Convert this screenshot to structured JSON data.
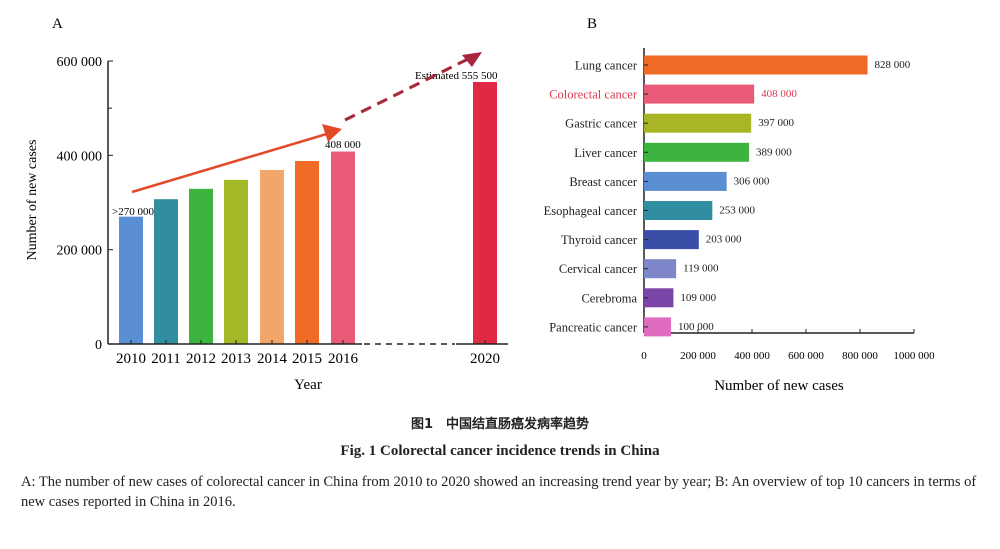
{
  "chart_data": [
    {
      "type": "bar",
      "panel_label": "A",
      "ylabel": "Number of new cases",
      "xlabel": "Year",
      "ylim": [
        0,
        600000
      ],
      "yticks": [
        0,
        200000,
        400000,
        600000
      ],
      "ytick_labels": [
        "0",
        "200 000",
        "400 000",
        "600 000"
      ],
      "categories": [
        "2010",
        "2011",
        "2012",
        "2013",
        "2014",
        "2015",
        "2016",
        "2020"
      ],
      "values": [
        270000,
        307000,
        329000,
        348000,
        369000,
        388000,
        408000,
        555500
      ],
      "colors": [
        "#5b8fd3",
        "#318ea0",
        "#3db43f",
        "#a4b828",
        "#f3a66a",
        "#ef6a25",
        "#e85a78",
        "#e02a45"
      ],
      "annotations": {
        "first": ">270 000",
        "y2016": "408 000",
        "y2020": "Estimated 555 500"
      },
      "trend_color": "#e34a2a",
      "dashed_trend_color": "#a8263e"
    },
    {
      "type": "bar",
      "orientation": "horizontal",
      "panel_label": "B",
      "xlabel": "Number of new cases",
      "xlim": [
        0,
        1000000
      ],
      "xticks": [
        0,
        200000,
        400000,
        600000,
        800000,
        1000000
      ],
      "xtick_labels": [
        "0",
        "200 000",
        "400 000",
        "600 000",
        "800 000",
        "1000 000"
      ],
      "categories": [
        "Lung cancer",
        "Colorectal cancer",
        "Gastric cancer",
        "Liver cancer",
        "Breast cancer",
        "Esophageal cancer",
        "Thyroid cancer",
        "Cervical cancer",
        "Cerebroma",
        "Pancreatic cancer"
      ],
      "values": [
        828000,
        408000,
        397000,
        389000,
        306000,
        253000,
        203000,
        119000,
        109000,
        100000
      ],
      "value_labels": [
        "828 000",
        "408 000",
        "397 000",
        "389 000",
        "306 000",
        "253 000",
        "203 000",
        "119 000",
        "109 000",
        "100 000"
      ],
      "colors": [
        "#ef6a25",
        "#e85a78",
        "#a8b625",
        "#3db43f",
        "#5b8fd3",
        "#318ea0",
        "#3a4ea8",
        "#7d86c9",
        "#7b45a8",
        "#e06cc0"
      ],
      "highlight_index": 1,
      "highlight_color": "#d8394f"
    }
  ],
  "caption": {
    "cn": "图1　中国结直肠癌发病率趋势",
    "en": "Fig. 1 Colorectal cancer incidence trends in China",
    "description": "A: The number of new cases of colorectal cancer in China from 2010 to 2020 showed an increasing trend year by year; B: An overview of top 10 cancers in terms of new cases reported in China in 2016."
  }
}
